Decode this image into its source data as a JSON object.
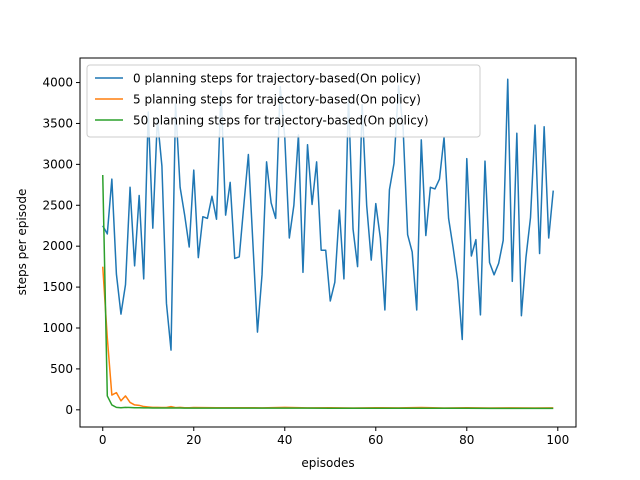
{
  "chart_data": {
    "type": "line",
    "title": "",
    "xlabel": "episodes",
    "ylabel": "steps per episode",
    "xlim": [
      -5,
      104
    ],
    "ylim": [
      -210,
      4300
    ],
    "xticks": [
      0,
      20,
      40,
      60,
      80,
      100
    ],
    "yticks": [
      0,
      500,
      1000,
      1500,
      2000,
      2500,
      3000,
      3500,
      4000
    ],
    "grid": false,
    "legend_position": "top-left",
    "series": [
      {
        "name": "0 planning steps for trajectory-based(On policy)",
        "color": "#1f77b4",
        "x": [
          0,
          1,
          2,
          3,
          4,
          5,
          6,
          7,
          8,
          9,
          10,
          11,
          12,
          13,
          14,
          15,
          16,
          17,
          18,
          19,
          20,
          21,
          22,
          23,
          24,
          25,
          26,
          27,
          28,
          29,
          30,
          31,
          32,
          33,
          34,
          35,
          36,
          37,
          38,
          39,
          40,
          41,
          42,
          43,
          44,
          45,
          46,
          47,
          48,
          49,
          50,
          51,
          52,
          53,
          54,
          55,
          56,
          57,
          58,
          59,
          60,
          61,
          62,
          63,
          64,
          65,
          66,
          67,
          68,
          69,
          70,
          71,
          72,
          73,
          74,
          75,
          76,
          77,
          78,
          79,
          80,
          81,
          82,
          83,
          84,
          85,
          86,
          87,
          88,
          89,
          90,
          91,
          92,
          93,
          94,
          95,
          96,
          97,
          98,
          99
        ],
        "values": [
          2250,
          2150,
          2820,
          1660,
          1170,
          1530,
          2720,
          1760,
          2620,
          1600,
          3640,
          2220,
          3560,
          2980,
          1300,
          730,
          3740,
          2720,
          2380,
          1990,
          2930,
          1860,
          2360,
          2340,
          2610,
          2330,
          3900,
          2380,
          2780,
          1850,
          1870,
          2500,
          3120,
          2030,
          950,
          1650,
          3030,
          2530,
          2340,
          3950,
          3330,
          2100,
          2500,
          3360,
          1680,
          3240,
          2510,
          3030,
          1950,
          1950,
          1330,
          1560,
          2440,
          1600,
          3820,
          2210,
          1750,
          3730,
          2500,
          1830,
          2520,
          2100,
          1220,
          2690,
          3010,
          3960,
          3450,
          2140,
          1930,
          1220,
          3300,
          2130,
          2720,
          2700,
          2820,
          3330,
          2340,
          1980,
          1580,
          860,
          3070,
          1880,
          2080,
          1160,
          3040,
          1800,
          1650,
          1790,
          2070,
          4040,
          1570,
          3380,
          1150,
          1860,
          2350,
          3480,
          1910,
          3460,
          2100,
          2680
        ]
      },
      {
        "name": "5 planning steps for trajectory-based(On policy)",
        "color": "#ff7f0e",
        "x": [
          0,
          1,
          2,
          3,
          4,
          5,
          6,
          7,
          8,
          9,
          10,
          11,
          12,
          13,
          14,
          15,
          16,
          17,
          18,
          19,
          20,
          25,
          30,
          35,
          40,
          45,
          50,
          55,
          60,
          65,
          70,
          75,
          80,
          85,
          90,
          95,
          99
        ],
        "values": [
          1750,
          880,
          180,
          210,
          110,
          170,
          90,
          60,
          55,
          40,
          35,
          30,
          30,
          28,
          28,
          40,
          27,
          30,
          26,
          25,
          28,
          25,
          26,
          24,
          30,
          24,
          26,
          23,
          25,
          24,
          28,
          23,
          26,
          23,
          24,
          22,
          24
        ]
      },
      {
        "name": "50 planning steps for trajectory-based(On policy)",
        "color": "#2ca02c",
        "x": [
          0,
          1,
          2,
          3,
          4,
          5,
          6,
          7,
          8,
          9,
          10,
          11,
          12,
          13,
          14,
          15,
          16,
          17,
          18,
          19,
          20,
          25,
          30,
          35,
          40,
          45,
          50,
          55,
          60,
          65,
          70,
          75,
          80,
          85,
          90,
          95,
          99
        ],
        "values": [
          2870,
          170,
          60,
          30,
          25,
          30,
          28,
          26,
          25,
          24,
          24,
          23,
          23,
          23,
          22,
          22,
          22,
          22,
          21,
          21,
          21,
          20,
          20,
          20,
          20,
          20,
          19,
          19,
          19,
          19,
          19,
          19,
          19,
          18,
          18,
          18,
          18
        ]
      }
    ]
  }
}
